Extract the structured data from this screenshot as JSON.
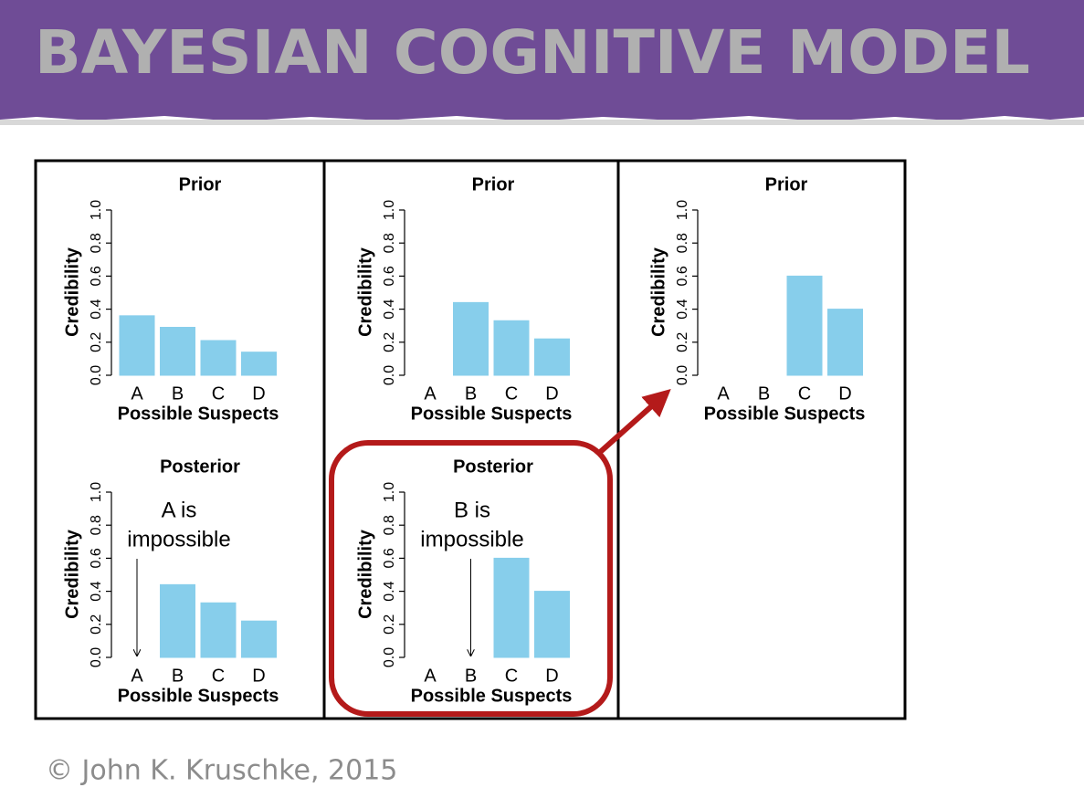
{
  "title": "BAYESIAN COGNITIVE MODEL",
  "footer": "© John K. Kruschke, 2015",
  "chart_data": [
    {
      "type": "bar",
      "title": "Prior",
      "xlabel": "Possible Suspects",
      "ylabel": "Credibility",
      "categories": [
        "A",
        "B",
        "C",
        "D"
      ],
      "values": [
        0.36,
        0.29,
        0.21,
        0.14
      ],
      "color": "#87ceeb",
      "ylim": [
        0,
        1
      ],
      "yticks": [
        {
          "value": 0,
          "label": "0.0"
        },
        0.2,
        0.4,
        0.6,
        0.8,
        {
          "value": 1,
          "label": "1.0"
        }
      ]
    },
    {
      "type": "bar",
      "title": "Posterior",
      "xlabel": "Possible Suspects",
      "ylabel": "Credibility",
      "categories": [
        "A",
        "B",
        "C",
        "D"
      ],
      "values": [
        0,
        0.44,
        0.33,
        0.22
      ],
      "color": "#87ceeb",
      "ylim": [
        0,
        1
      ],
      "yticks": [
        {
          "value": 0,
          "label": "0.0"
        },
        0.2,
        0.4,
        0.6,
        0.8,
        {
          "value": 1,
          "label": "1.0"
        }
      ],
      "annotation": [
        "A is",
        "impossible"
      ]
    },
    {
      "type": "bar",
      "title": "Prior",
      "xlabel": "Possible Suspects",
      "ylabel": "Credibility",
      "categories": [
        "A",
        "B",
        "C",
        "D"
      ],
      "values": [
        0,
        0.44,
        0.33,
        0.22
      ],
      "color": "#87ceeb",
      "ylim": [
        0,
        1
      ],
      "yticks": [
        {
          "value": 0,
          "label": "0.0"
        },
        0.2,
        0.4,
        0.6,
        0.8,
        {
          "value": 1,
          "label": "1.0"
        }
      ]
    },
    {
      "type": "bar",
      "title": "Posterior",
      "xlabel": "Possible Suspects",
      "ylabel": "Credibility",
      "categories": [
        "A",
        "B",
        "C",
        "D"
      ],
      "values": [
        0,
        0,
        0.6,
        0.4
      ],
      "color": "#87ceeb",
      "ylim": [
        0,
        1
      ],
      "yticks": [
        {
          "value": 0,
          "label": "0.0"
        },
        0.2,
        0.4,
        0.6,
        0.8,
        {
          "value": 1,
          "label": "1.0"
        }
      ],
      "annotation": [
        "B is",
        "impossible"
      ]
    },
    {
      "type": "bar",
      "title": "Prior",
      "xlabel": "Possible Suspects",
      "ylabel": "Credibility",
      "categories": [
        "A",
        "B",
        "C",
        "D"
      ],
      "values": [
        0,
        0,
        0.6,
        0.4
      ],
      "color": "#87ceeb",
      "ylim": [
        0,
        1
      ],
      "yticks": [
        {
          "value": 0,
          "label": "0.0"
        },
        0.2,
        0.4,
        0.6,
        0.8,
        {
          "value": 1,
          "label": "1.0"
        }
      ]
    }
  ]
}
